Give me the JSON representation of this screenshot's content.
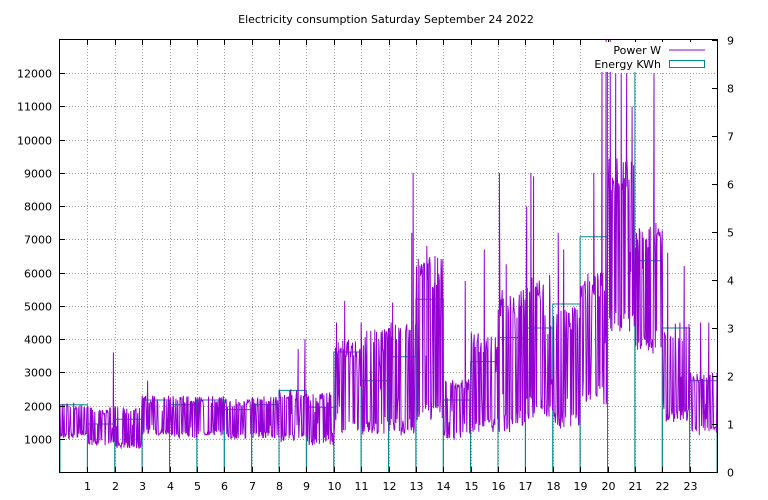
{
  "chart_data": {
    "type": "line",
    "title": "Electricity consumption Saturday September 24 2022",
    "x_ticks": [
      "1",
      "2",
      "3",
      "4",
      "5",
      "6",
      "7",
      "8",
      "9",
      "10",
      "11",
      "12",
      "13",
      "14",
      "15",
      "16",
      "17",
      "18",
      "19",
      "20",
      "21",
      "22",
      "23"
    ],
    "xlim": [
      0,
      24
    ],
    "y_ticks": [
      "1000",
      "2000",
      "3000",
      "4000",
      "5000",
      "6000",
      "7000",
      "8000",
      "9000",
      "10000",
      "11000",
      "12000"
    ],
    "ylim": [
      0,
      13000
    ],
    "y2_ticks": [
      "0",
      "1",
      "2",
      "3",
      "4",
      "5",
      "6",
      "7",
      "8",
      "9"
    ],
    "y2lim": [
      0,
      9
    ],
    "grid": true,
    "legend_position": "top-right",
    "series": [
      {
        "name": "Power W",
        "axis": "left",
        "color": "#9400d3",
        "style": "line",
        "hourly_profile": [
          [
            1000,
            2100
          ],
          [
            800,
            1950
          ],
          [
            700,
            2000
          ],
          [
            1100,
            2300
          ],
          [
            1000,
            2300
          ],
          [
            1100,
            2300
          ],
          [
            1000,
            2200
          ],
          [
            1000,
            2300
          ],
          [
            900,
            2500
          ],
          [
            800,
            2400
          ],
          [
            1200,
            4000
          ],
          [
            1100,
            4300
          ],
          [
            1100,
            4500
          ],
          [
            1500,
            6500
          ],
          [
            1000,
            2800
          ],
          [
            1200,
            4200
          ],
          [
            1200,
            5500
          ],
          [
            1600,
            6000
          ],
          [
            1300,
            5000
          ],
          [
            2000,
            6000
          ],
          [
            4000,
            9500
          ],
          [
            3500,
            7500
          ],
          [
            1500,
            4500
          ],
          [
            1100,
            3000
          ]
        ],
        "peaks": [
          {
            "x": 1.95,
            "y": 3600
          },
          {
            "x": 3.2,
            "y": 2750
          },
          {
            "x": 8.7,
            "y": 3700
          },
          {
            "x": 8.95,
            "y": 4000
          },
          {
            "x": 10.1,
            "y": 4500
          },
          {
            "x": 10.4,
            "y": 5150
          },
          {
            "x": 11.0,
            "y": 4500
          },
          {
            "x": 11.8,
            "y": 3700
          },
          {
            "x": 12.1,
            "y": 4500
          },
          {
            "x": 12.15,
            "y": 5100
          },
          {
            "x": 12.85,
            "y": 7200
          },
          {
            "x": 12.9,
            "y": 9000
          },
          {
            "x": 13.4,
            "y": 6800
          },
          {
            "x": 13.7,
            "y": 6500
          },
          {
            "x": 13.9,
            "y": 4500
          },
          {
            "x": 14.8,
            "y": 5750
          },
          {
            "x": 15.5,
            "y": 6700
          },
          {
            "x": 16.05,
            "y": 9000
          },
          {
            "x": 16.3,
            "y": 6250
          },
          {
            "x": 16.8,
            "y": 5000
          },
          {
            "x": 17.05,
            "y": 8000
          },
          {
            "x": 17.2,
            "y": 9000
          },
          {
            "x": 17.3,
            "y": 8900
          },
          {
            "x": 17.9,
            "y": 5100
          },
          {
            "x": 18.2,
            "y": 7200
          },
          {
            "x": 18.4,
            "y": 6700
          },
          {
            "x": 19.5,
            "y": 9000
          },
          {
            "x": 19.8,
            "y": 12500
          },
          {
            "x": 19.95,
            "y": 13000
          },
          {
            "x": 20.1,
            "y": 13000
          },
          {
            "x": 20.3,
            "y": 12000
          },
          {
            "x": 20.5,
            "y": 12000
          },
          {
            "x": 20.7,
            "y": 12000
          },
          {
            "x": 20.9,
            "y": 11000
          },
          {
            "x": 21.1,
            "y": 7000
          },
          {
            "x": 21.7,
            "y": 12000
          },
          {
            "x": 21.85,
            "y": 7200
          },
          {
            "x": 22.2,
            "y": 6600
          },
          {
            "x": 22.8,
            "y": 6200
          },
          {
            "x": 23.4,
            "y": 4500
          },
          {
            "x": 23.7,
            "y": 4500
          }
        ]
      },
      {
        "name": "Energy KWh",
        "axis": "right",
        "color": "#008b8b",
        "style": "steps",
        "x": [
          0,
          1,
          2,
          3,
          4,
          5,
          6,
          7,
          8,
          9,
          10,
          11,
          12,
          13,
          14,
          15,
          16,
          17,
          18,
          19,
          20,
          21,
          22,
          23
        ],
        "values": [
          1.4,
          1.0,
          1.1,
          1.5,
          1.4,
          1.5,
          1.3,
          1.4,
          1.7,
          1.35,
          2.5,
          1.9,
          2.4,
          3.6,
          1.5,
          2.3,
          2.8,
          3.0,
          3.5,
          4.9,
          8.7,
          4.4,
          3.0,
          1.9
        ]
      }
    ]
  }
}
